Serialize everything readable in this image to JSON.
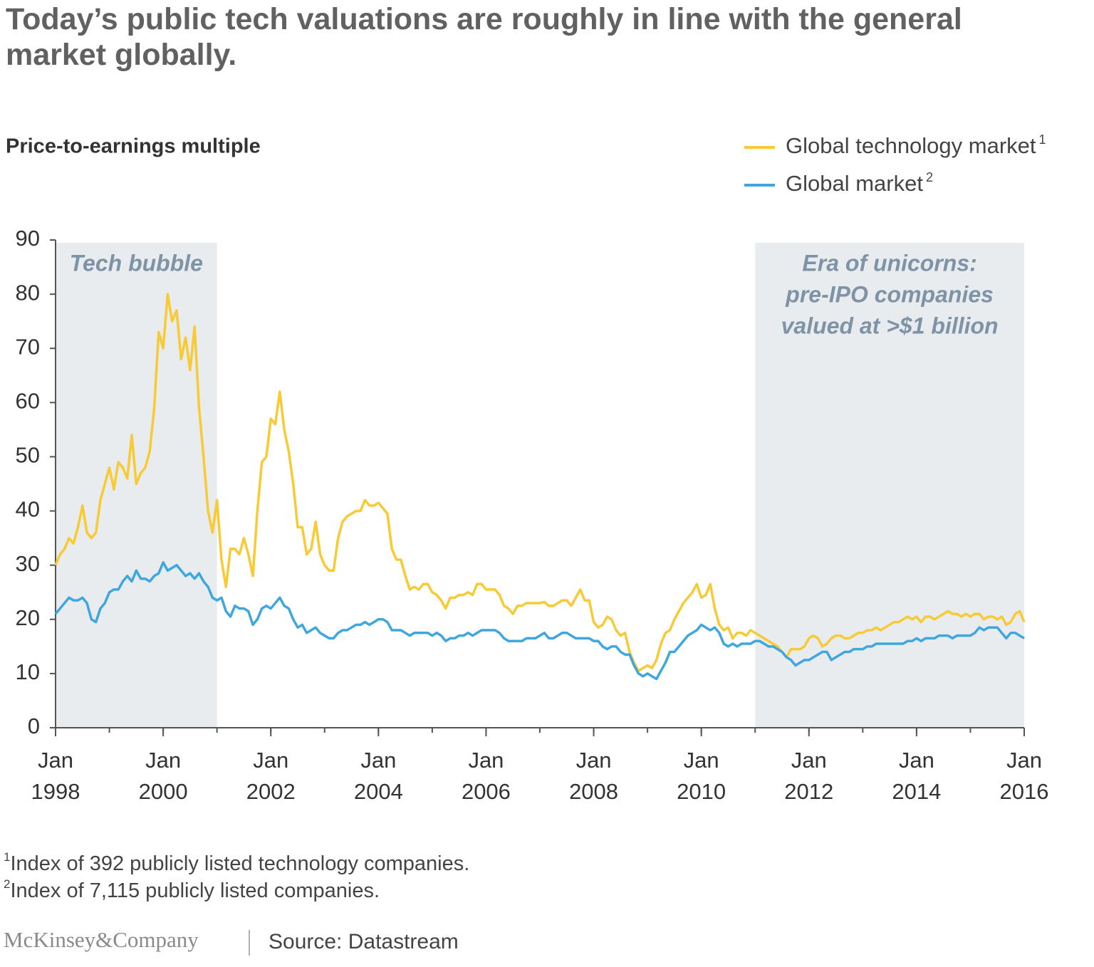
{
  "chart_data": {
    "type": "line",
    "title": "Today’s public tech valuations are roughly in line with the general market globally.",
    "y_label": "Price-to-earnings multiple",
    "ylim": [
      0,
      90
    ],
    "yticks": [
      0,
      10,
      20,
      30,
      40,
      50,
      60,
      70,
      80,
      90
    ],
    "xlim": [
      "1998-01",
      "2016-01"
    ],
    "xticks": [
      {
        "value": "1998-01",
        "label": "Jan 1998"
      },
      {
        "value": "2000-01",
        "label": "Jan 2000"
      },
      {
        "value": "2002-01",
        "label": "Jan 2002"
      },
      {
        "value": "2004-01",
        "label": "Jan 2004"
      },
      {
        "value": "2006-01",
        "label": "Jan 2006"
      },
      {
        "value": "2008-01",
        "label": "Jan 2008"
      },
      {
        "value": "2010-01",
        "label": "Jan 2010"
      },
      {
        "value": "2012-01",
        "label": "Jan 2012"
      },
      {
        "value": "2014-01",
        "label": "Jan 2014"
      },
      {
        "value": "2016-01",
        "label": "Jan 2016"
      }
    ],
    "shaded_periods": [
      {
        "start": "1998-01",
        "end": "2001-01",
        "label": [
          "Tech bubble"
        ]
      },
      {
        "start": "2011-01",
        "end": "2016-01",
        "label": [
          "Era of unicorns:",
          "pre-IPO companies",
          "valued at >$1 billion"
        ]
      }
    ],
    "x": [
      "1998-01",
      "1998-02",
      "1998-03",
      "1998-04",
      "1998-05",
      "1998-06",
      "1998-07",
      "1998-08",
      "1998-09",
      "1998-10",
      "1998-11",
      "1998-12",
      "1999-01",
      "1999-02",
      "1999-03",
      "1999-04",
      "1999-05",
      "1999-06",
      "1999-07",
      "1999-08",
      "1999-09",
      "1999-10",
      "1999-11",
      "1999-12",
      "2000-01",
      "2000-02",
      "2000-03",
      "2000-04",
      "2000-05",
      "2000-06",
      "2000-07",
      "2000-08",
      "2000-09",
      "2000-10",
      "2000-11",
      "2000-12",
      "2001-01",
      "2001-02",
      "2001-03",
      "2001-04",
      "2001-05",
      "2001-06",
      "2001-07",
      "2001-08",
      "2001-09",
      "2001-10",
      "2001-11",
      "2001-12",
      "2002-01",
      "2002-02",
      "2002-03",
      "2002-04",
      "2002-05",
      "2002-06",
      "2002-07",
      "2002-08",
      "2002-09",
      "2002-10",
      "2002-11",
      "2002-12",
      "2003-01",
      "2003-02",
      "2003-03",
      "2003-04",
      "2003-05",
      "2003-06",
      "2003-07",
      "2003-08",
      "2003-09",
      "2003-10",
      "2003-11",
      "2003-12",
      "2004-01",
      "2004-02",
      "2004-03",
      "2004-04",
      "2004-05",
      "2004-06",
      "2004-07",
      "2004-08",
      "2004-09",
      "2004-10",
      "2004-11",
      "2004-12",
      "2005-01",
      "2005-02",
      "2005-03",
      "2005-04",
      "2005-05",
      "2005-06",
      "2005-07",
      "2005-08",
      "2005-09",
      "2005-10",
      "2005-11",
      "2005-12",
      "2006-01",
      "2006-02",
      "2006-03",
      "2006-04",
      "2006-05",
      "2006-06",
      "2006-07",
      "2006-08",
      "2006-09",
      "2006-10",
      "2006-11",
      "2006-12",
      "2007-01",
      "2007-02",
      "2007-03",
      "2007-04",
      "2007-05",
      "2007-06",
      "2007-07",
      "2007-08",
      "2007-09",
      "2007-10",
      "2007-11",
      "2007-12",
      "2008-01",
      "2008-02",
      "2008-03",
      "2008-04",
      "2008-05",
      "2008-06",
      "2008-07",
      "2008-08",
      "2008-09",
      "2008-10",
      "2008-11",
      "2008-12",
      "2009-01",
      "2009-02",
      "2009-03",
      "2009-04",
      "2009-05",
      "2009-06",
      "2009-07",
      "2009-08",
      "2009-09",
      "2009-10",
      "2009-11",
      "2009-12",
      "2010-01",
      "2010-02",
      "2010-03",
      "2010-04",
      "2010-05",
      "2010-06",
      "2010-07",
      "2010-08",
      "2010-09",
      "2010-10",
      "2010-11",
      "2010-12",
      "2011-01",
      "2011-02",
      "2011-03",
      "2011-04",
      "2011-05",
      "2011-06",
      "2011-07",
      "2011-08",
      "2011-09",
      "2011-10",
      "2011-11",
      "2011-12",
      "2012-01",
      "2012-02",
      "2012-03",
      "2012-04",
      "2012-05",
      "2012-06",
      "2012-07",
      "2012-08",
      "2012-09",
      "2012-10",
      "2012-11",
      "2012-12",
      "2013-01",
      "2013-02",
      "2013-03",
      "2013-04",
      "2013-05",
      "2013-06",
      "2013-07",
      "2013-08",
      "2013-09",
      "2013-10",
      "2013-11",
      "2013-12",
      "2014-01",
      "2014-02",
      "2014-03",
      "2014-04",
      "2014-05",
      "2014-06",
      "2014-07",
      "2014-08",
      "2014-09",
      "2014-10",
      "2014-11",
      "2014-12",
      "2015-01",
      "2015-02",
      "2015-03",
      "2015-04",
      "2015-05",
      "2015-06",
      "2015-07",
      "2015-08",
      "2015-09",
      "2015-10",
      "2015-11",
      "2015-12",
      "2016-01"
    ],
    "series": [
      {
        "name": "Global technology market",
        "footnote_ref": "1",
        "color": "#f7ca36",
        "values": [
          30,
          32,
          33,
          35,
          34,
          37,
          41,
          36,
          35,
          36,
          42,
          45,
          48,
          44,
          49,
          48,
          46,
          54,
          45,
          47,
          48,
          51,
          59,
          73,
          70,
          80,
          75,
          77,
          68,
          72,
          66,
          74,
          59,
          50,
          40,
          36,
          42,
          31,
          26,
          33,
          33,
          32,
          35,
          32,
          28,
          40,
          49,
          50,
          57,
          56,
          62,
          55,
          51,
          45,
          37,
          37,
          32,
          33,
          38,
          32,
          30,
          29,
          29,
          35,
          38,
          39,
          39.5,
          40,
          40,
          42,
          41,
          41,
          41.5,
          40.5,
          39.5,
          33,
          31,
          31,
          28,
          25.5,
          26,
          25.5,
          26.5,
          26.5,
          25,
          24.5,
          23.5,
          22,
          24,
          24,
          24.5,
          24.5,
          25,
          24.5,
          26.5,
          26.5,
          25.5,
          25.5,
          25.5,
          24.5,
          22.5,
          22,
          21,
          22.5,
          22.5,
          23,
          23,
          23,
          23,
          23.2,
          22.5,
          22.5,
          23,
          23.5,
          23.5,
          22.5,
          24,
          25.5,
          23.5,
          23.5,
          19.5,
          18.5,
          19,
          20.5,
          20,
          18,
          17,
          17.5,
          14,
          12,
          10.5,
          11,
          11.5,
          11,
          12.5,
          15.5,
          17.5,
          18,
          20,
          21.5,
          23,
          24,
          25,
          26.5,
          24,
          24.5,
          26.5,
          22,
          19,
          18,
          18.5,
          16.5,
          17.5,
          17.5,
          17,
          18,
          17.5,
          17,
          16.5,
          16,
          15.5,
          15,
          14,
          13,
          14.5,
          14.5,
          14.5,
          15,
          16.5,
          17,
          16.5,
          15,
          15.5,
          16.5,
          17,
          17,
          16.5,
          16.5,
          17,
          17.5,
          17.5,
          18,
          18,
          18.5,
          18,
          18.5,
          19,
          19.5,
          19.5,
          20,
          20.5,
          20,
          20.5,
          19.5,
          20.5,
          20.5,
          20,
          20.5,
          21,
          21.5,
          21,
          21,
          20.5,
          21,
          20.5,
          21,
          21,
          20,
          20.5,
          20.5,
          20,
          20.5,
          19,
          19.5,
          21,
          21.5,
          19.5
        ]
      },
      {
        "name": "Global market",
        "footnote_ref": "2",
        "color": "#3fa7de",
        "values": [
          21,
          22,
          23,
          24,
          23.5,
          23.5,
          24,
          23,
          20,
          19.5,
          22,
          23,
          25,
          25.5,
          25.5,
          27,
          28,
          27,
          29,
          27.5,
          27.5,
          27,
          28,
          28.5,
          30.5,
          29,
          29.5,
          30,
          29,
          28,
          28.5,
          27.5,
          28.5,
          27,
          26,
          24,
          23.5,
          24,
          21.5,
          20.5,
          22.5,
          22,
          22,
          21.5,
          19,
          20,
          22,
          22.5,
          22,
          23,
          24,
          22.5,
          22,
          20,
          18.5,
          19,
          17.5,
          18,
          18.5,
          17.5,
          17,
          16.5,
          16.5,
          17.5,
          18,
          18,
          18.5,
          19,
          19,
          19.5,
          19,
          19.5,
          20,
          20,
          19.5,
          18,
          18,
          18,
          17.5,
          17,
          17.5,
          17.5,
          17.5,
          17.5,
          17,
          17.5,
          17,
          16,
          16.5,
          16.5,
          17,
          17,
          17.5,
          17,
          17.5,
          18,
          18,
          18,
          18,
          17.5,
          16.5,
          16,
          16,
          16,
          16,
          16.5,
          16.5,
          16.5,
          17,
          17.5,
          16.5,
          16.5,
          17,
          17.5,
          17.5,
          17,
          16.5,
          16.5,
          16.5,
          16.5,
          16,
          16,
          15,
          14.5,
          15,
          15,
          14,
          13.5,
          13.5,
          11.5,
          10,
          9.5,
          10,
          9.5,
          9,
          10.5,
          12,
          14,
          14,
          15,
          16,
          17,
          17.5,
          18,
          19,
          18.5,
          18,
          18.5,
          17.5,
          15.5,
          15,
          15.5,
          15,
          15.5,
          15.5,
          15.5,
          16,
          16,
          15.5,
          15,
          15,
          14.5,
          14,
          13,
          12.5,
          11.5,
          12,
          12.5,
          12.5,
          13,
          13.5,
          14,
          14,
          12.5,
          13,
          13.5,
          14,
          14,
          14.5,
          14.5,
          14.5,
          15,
          15,
          15.5,
          15.5,
          15.5,
          15.5,
          15.5,
          15.5,
          15.5,
          16,
          16,
          16.5,
          16,
          16.5,
          16.5,
          16.5,
          17,
          17,
          17,
          16.5,
          17,
          17,
          17,
          17,
          17.5,
          18.5,
          18,
          18.5,
          18.5,
          18.5,
          17.5,
          16.5,
          17.5,
          17.5,
          17,
          16.5
        ]
      }
    ],
    "footnotes": [
      {
        "marker": "1",
        "text": "Index of 392 publicly listed technology companies."
      },
      {
        "marker": "2",
        "text": "Index of 7,115 publicly listed companies."
      }
    ],
    "brand": "McKinsey&Company",
    "source": "Source: Datastream"
  }
}
